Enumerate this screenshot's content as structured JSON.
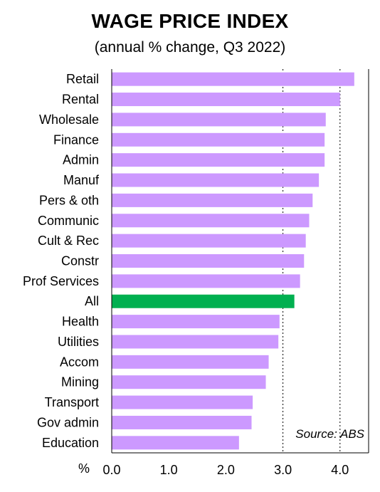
{
  "chart_data": {
    "type": "bar",
    "orientation": "horizontal",
    "title": "WAGE PRICE INDEX",
    "subtitle": "(annual % change, Q3 2022)",
    "xlabel": "%",
    "ylabel": "",
    "xlim": [
      0,
      4.5
    ],
    "xticks": [
      "0.0",
      "1.0",
      "2.0",
      "3.0",
      "4.0"
    ],
    "grid": "vertical dashed at 3.0 and 4.0",
    "categories": [
      "Retail",
      "Rental",
      "Wholesale",
      "Finance",
      "Admin",
      "Manuf",
      "Pers & oth",
      "Communic",
      "Cult & Rec",
      "Constr",
      "Prof Services",
      "All",
      "Health",
      "Utilities",
      "Accom",
      "Mining",
      "Transport",
      "Gov admin",
      "Education"
    ],
    "values": [
      4.25,
      4.0,
      3.75,
      3.73,
      3.73,
      3.63,
      3.52,
      3.46,
      3.4,
      3.37,
      3.3,
      3.2,
      2.94,
      2.92,
      2.75,
      2.7,
      2.47,
      2.45,
      2.23
    ],
    "highlight": "All",
    "colors": {
      "bar": "#cc99ff",
      "highlight": "#00b050",
      "grid": "#000000"
    },
    "annotation": "Source: ABS"
  }
}
